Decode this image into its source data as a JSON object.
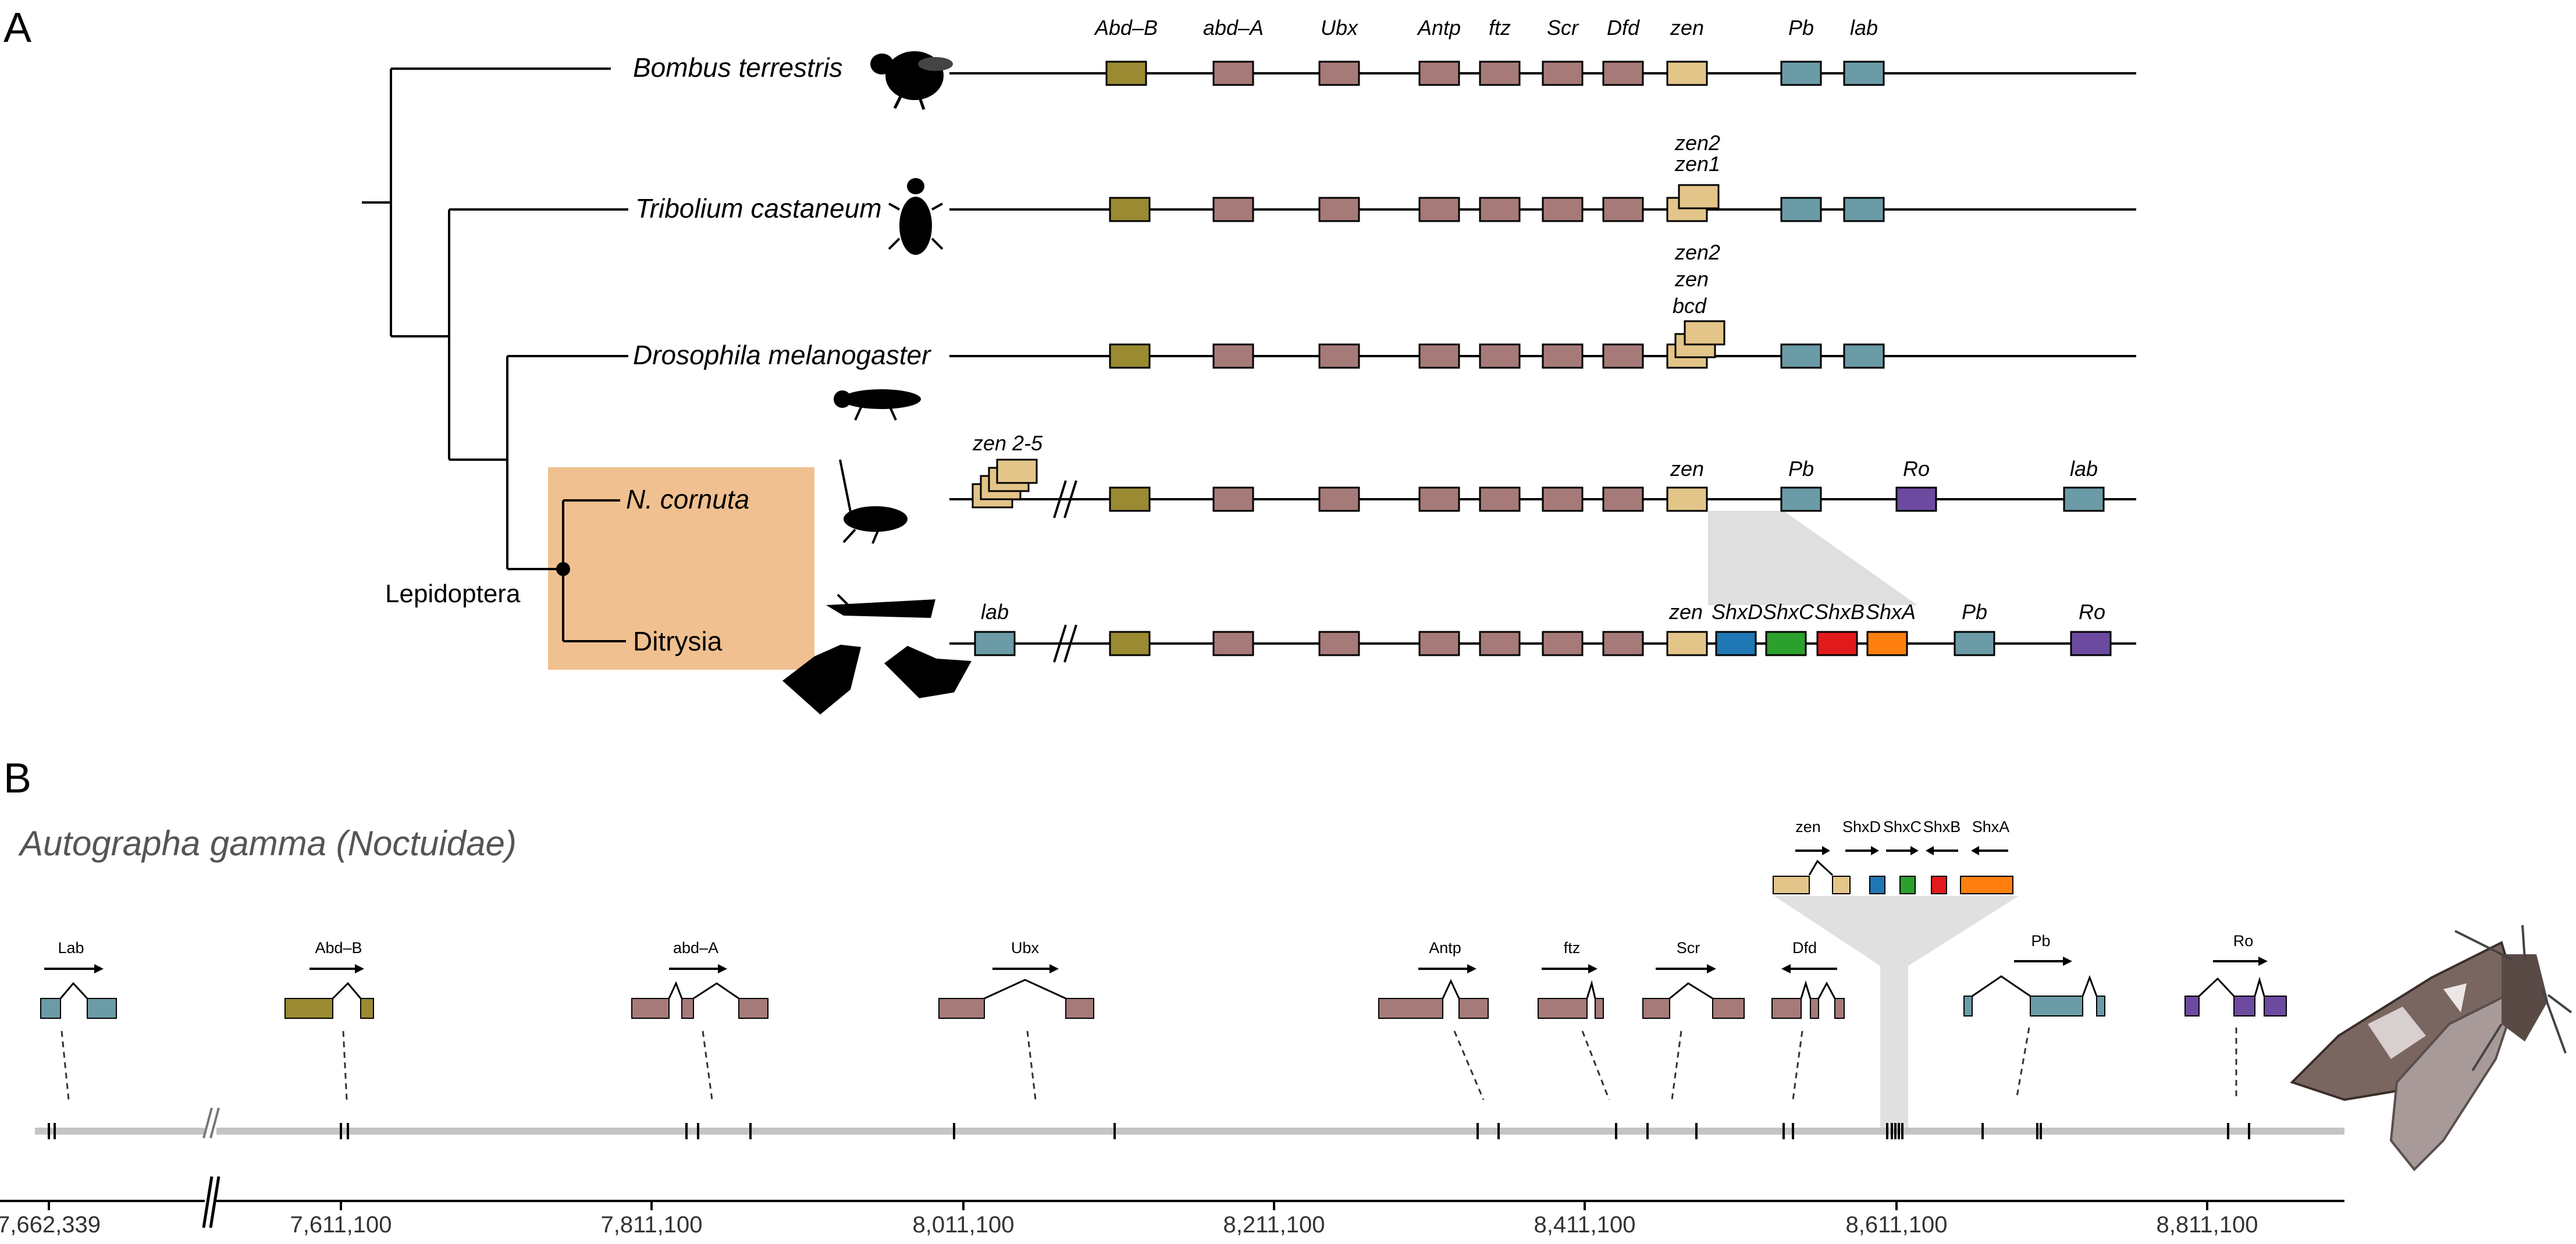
{
  "panel_a": {
    "label": "A",
    "clade_label": "Lepidoptera",
    "species": [
      {
        "name": "Bombus terrestris"
      },
      {
        "name": "Tribolium castaneum"
      },
      {
        "name": "Drosophila melanogaster"
      },
      {
        "name": "N. cornuta"
      },
      {
        "name": "Ditrysia"
      }
    ],
    "gene_labels": {
      "bombus": [
        "Abd–B",
        "abd–A",
        "Ubx",
        "Antp",
        "ftz",
        "Scr",
        "Dfd",
        "zen",
        "Pb",
        "lab"
      ],
      "tribolium": [
        "zen2",
        "zen1"
      ],
      "drosophila": [
        "zen2",
        "zen",
        "bcd"
      ],
      "ncornuta": [
        "zen 2-5",
        "zen",
        "Pb",
        "Ro",
        "lab"
      ],
      "ditrysia": [
        "lab",
        "zen",
        "ShxD",
        "ShxC",
        "ShxB",
        "ShxA",
        "Pb",
        "Ro"
      ]
    },
    "colors": {
      "abdb": "#9a8a32",
      "hox": "#a67a78",
      "zen": "#e3c589",
      "pb_lab": "#6a9ba6",
      "ro": "#6c4aa0",
      "shxD": "#1f77b4",
      "shxC": "#2ca02c",
      "shxB": "#e31a1c",
      "shxA": "#ff7f0e",
      "clade_box": "#f0c090"
    }
  },
  "panel_b": {
    "label": "B",
    "title": "Autographa gamma (Noctuidae)",
    "genes": [
      "Lab",
      "Abd–B",
      "abd–A",
      "Ubx",
      "Antp",
      "ftz",
      "Scr",
      "Dfd",
      "Pb",
      "Ro"
    ],
    "inset_genes": [
      "zen",
      "ShxD",
      "ShxC",
      "ShxB",
      "ShxA"
    ],
    "axis_ticks": [
      "7,662,339",
      "7,611,100",
      "7,811,100",
      "8,011,100",
      "8,211,100",
      "8,411,100",
      "8,611,100",
      "8,811,100"
    ]
  }
}
